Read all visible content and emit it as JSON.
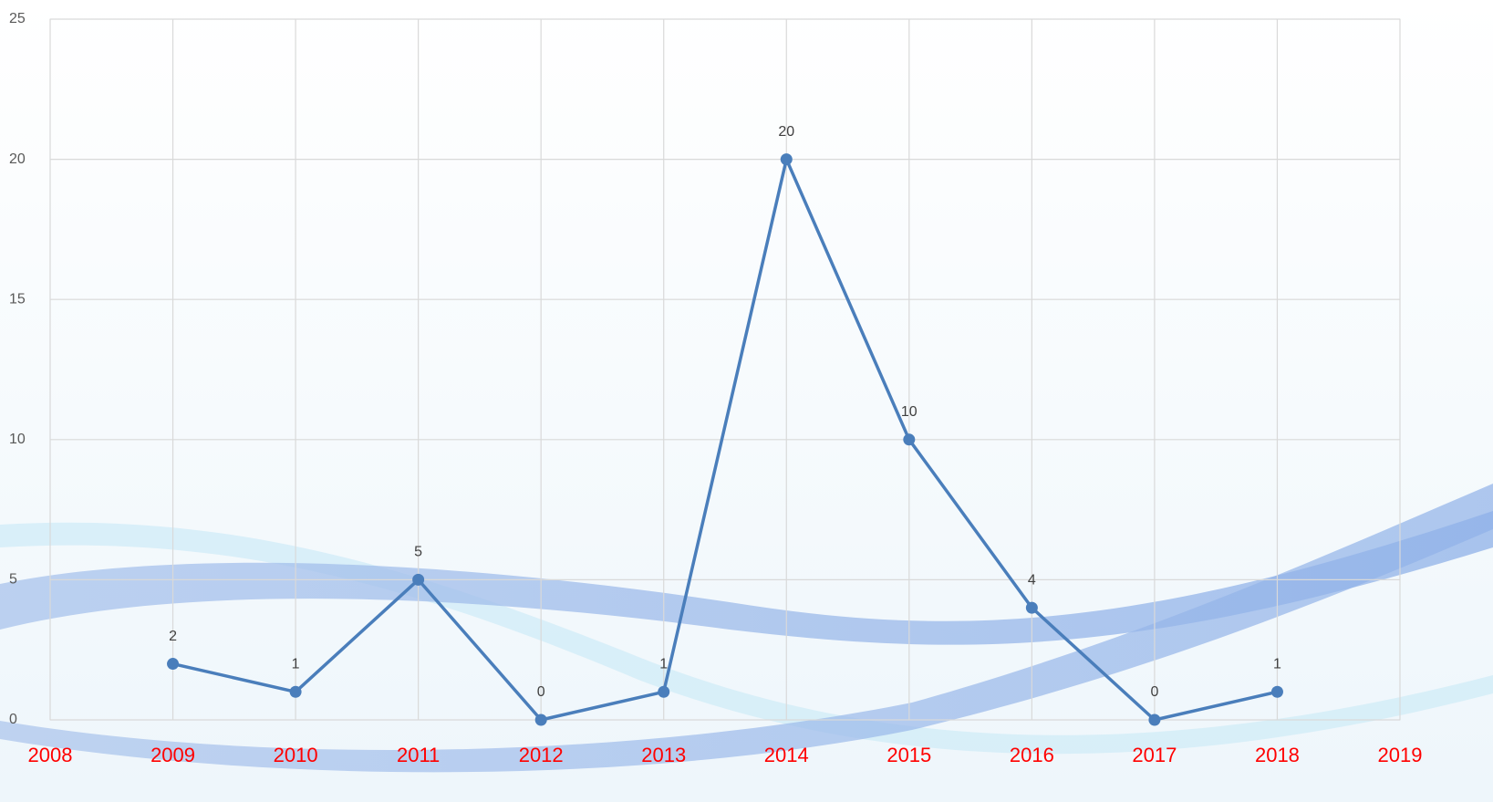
{
  "chart_data": {
    "type": "line",
    "x": [
      2009,
      2010,
      2011,
      2012,
      2013,
      2014,
      2015,
      2016,
      2017,
      2018
    ],
    "series": [
      {
        "color": "#4a7ebb",
        "values": [
          2,
          1,
          5,
          0,
          1,
          20,
          10,
          4,
          0,
          1
        ]
      }
    ],
    "xlim": [
      2008,
      2019
    ],
    "xticks": [
      2008,
      2009,
      2010,
      2011,
      2012,
      2013,
      2014,
      2015,
      2016,
      2017,
      2018,
      2019
    ],
    "ylim": [
      0,
      25
    ],
    "yticks": [
      0,
      5,
      10,
      15,
      20,
      25
    ],
    "grid": true,
    "xtick_color": "#ff0000"
  }
}
